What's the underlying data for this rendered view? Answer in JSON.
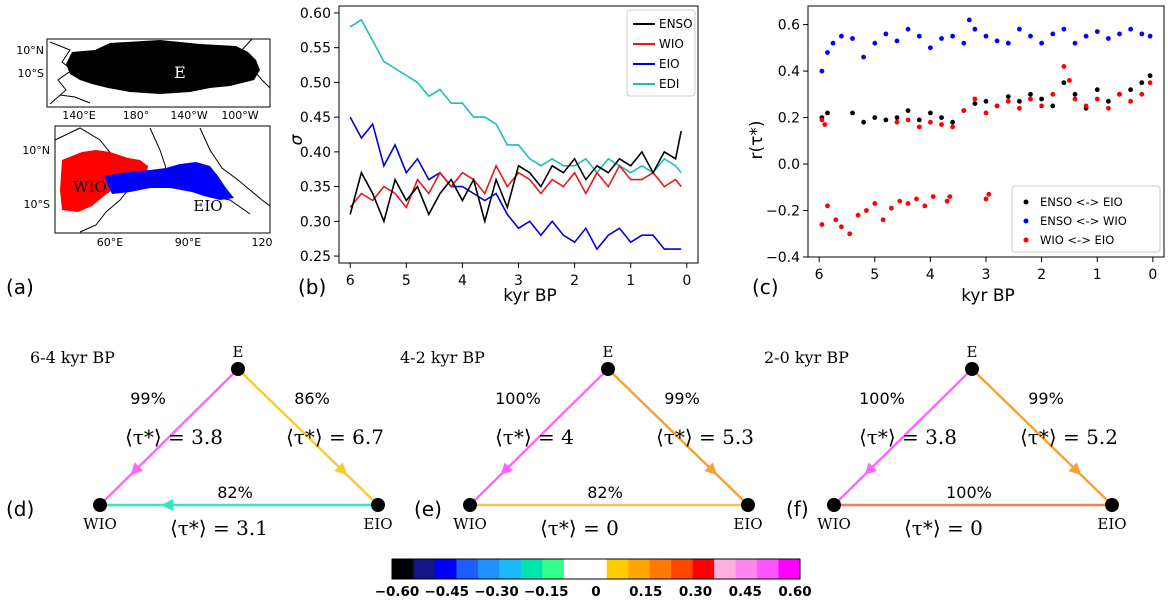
{
  "panel_labels": [
    "(a)",
    "(b)",
    "(c)",
    "(d)",
    "(e)",
    "(f)"
  ],
  "map_top": {
    "region_label": "E",
    "lat_ticks": [
      "10°N",
      "10°S"
    ],
    "lon_ticks": [
      "140°E",
      "180°",
      "140°W",
      "100°W"
    ],
    "region_color": "#000000"
  },
  "map_bottom": {
    "region_labels": [
      "WIO",
      "EIO"
    ],
    "lat_ticks": [
      "10°N",
      "10°S"
    ],
    "lon_ticks": [
      "60°E",
      "90°E",
      "120"
    ],
    "region_colors": {
      "WIO": "#ff0000",
      "EIO": "#0000ff"
    }
  },
  "chart_data": [
    {
      "type": "line",
      "panel": "(b)",
      "xlabel": "kyr BP",
      "ylabel": "σ",
      "xlim": [
        6.2,
        -0.2
      ],
      "ylim": [
        0.24,
        0.61
      ],
      "xticks": [
        6,
        5,
        4,
        3,
        2,
        1,
        0
      ],
      "yticks": [
        0.25,
        0.3,
        0.35,
        0.4,
        0.45,
        0.5,
        0.55,
        0.6
      ],
      "ytick_labels": [
        "0.25",
        "0.30",
        "0.35",
        "0.40",
        "0.45",
        "0.50",
        "0.55",
        "0.60"
      ],
      "legend": "top-right",
      "x": [
        6.0,
        5.8,
        5.6,
        5.4,
        5.2,
        5.0,
        4.8,
        4.6,
        4.4,
        4.2,
        4.0,
        3.8,
        3.6,
        3.4,
        3.2,
        3.0,
        2.8,
        2.6,
        2.4,
        2.2,
        2.0,
        1.8,
        1.6,
        1.4,
        1.2,
        1.0,
        0.8,
        0.6,
        0.4,
        0.2,
        0.1
      ],
      "series": [
        {
          "name": "ENSO",
          "color": "#000000",
          "values": [
            0.31,
            0.37,
            0.34,
            0.3,
            0.36,
            0.33,
            0.35,
            0.31,
            0.34,
            0.36,
            0.33,
            0.36,
            0.3,
            0.36,
            0.32,
            0.38,
            0.37,
            0.35,
            0.38,
            0.37,
            0.39,
            0.36,
            0.38,
            0.37,
            0.39,
            0.38,
            0.4,
            0.37,
            0.4,
            0.39,
            0.43
          ]
        },
        {
          "name": "WIO",
          "color": "#e41a1c",
          "values": [
            0.32,
            0.34,
            0.33,
            0.35,
            0.34,
            0.32,
            0.36,
            0.34,
            0.37,
            0.35,
            0.37,
            0.36,
            0.34,
            0.38,
            0.35,
            0.37,
            0.36,
            0.34,
            0.36,
            0.35,
            0.37,
            0.34,
            0.37,
            0.35,
            0.38,
            0.36,
            0.36,
            0.37,
            0.35,
            0.36,
            0.35
          ]
        },
        {
          "name": "EIO",
          "color": "#0000e0",
          "values": [
            0.45,
            0.42,
            0.44,
            0.38,
            0.41,
            0.37,
            0.39,
            0.36,
            0.37,
            0.35,
            0.35,
            0.34,
            0.33,
            0.34,
            0.31,
            0.29,
            0.3,
            0.28,
            0.3,
            0.28,
            0.27,
            0.29,
            0.26,
            0.28,
            0.29,
            0.27,
            0.28,
            0.28,
            0.26,
            0.26,
            0.26
          ]
        },
        {
          "name": "EDI",
          "color": "#1fbcbc",
          "values": [
            0.58,
            0.59,
            0.56,
            0.53,
            0.52,
            0.51,
            0.5,
            0.48,
            0.49,
            0.47,
            0.47,
            0.45,
            0.45,
            0.44,
            0.41,
            0.41,
            0.39,
            0.38,
            0.39,
            0.38,
            0.38,
            0.39,
            0.37,
            0.39,
            0.38,
            0.37,
            0.38,
            0.37,
            0.39,
            0.38,
            0.37
          ]
        }
      ]
    },
    {
      "type": "scatter",
      "panel": "(c)",
      "xlabel": "kyr BP",
      "ylabel": "r(τ*)",
      "xlim": [
        6.2,
        -0.2
      ],
      "ylim": [
        -0.4,
        0.68
      ],
      "xticks": [
        6,
        5,
        4,
        3,
        2,
        1,
        0
      ],
      "yticks": [
        -0.4,
        -0.2,
        0.0,
        0.2,
        0.4,
        0.6
      ],
      "ytick_labels": [
        "−0.4",
        "−0.2",
        "0.0",
        "0.2",
        "0.4",
        "0.6"
      ],
      "legend": "bottom-right",
      "series": [
        {
          "name": "ENSO <-> EIO",
          "color": "#000000",
          "points": [
            [
              5.95,
              0.2
            ],
            [
              5.85,
              0.22
            ],
            [
              5.4,
              0.22
            ],
            [
              5.2,
              0.18
            ],
            [
              5.0,
              0.2
            ],
            [
              4.8,
              0.19
            ],
            [
              4.6,
              0.2
            ],
            [
              4.4,
              0.23
            ],
            [
              4.2,
              0.19
            ],
            [
              4.0,
              0.22
            ],
            [
              3.8,
              0.2
            ],
            [
              3.6,
              0.18
            ],
            [
              3.4,
              0.23
            ],
            [
              3.2,
              0.26
            ],
            [
              3.0,
              0.27
            ],
            [
              2.8,
              0.25
            ],
            [
              2.6,
              0.29
            ],
            [
              2.4,
              0.27
            ],
            [
              2.2,
              0.3
            ],
            [
              2.0,
              0.28
            ],
            [
              1.8,
              0.25
            ],
            [
              1.6,
              0.35
            ],
            [
              1.4,
              0.3
            ],
            [
              1.2,
              0.24
            ],
            [
              1.0,
              0.32
            ],
            [
              0.8,
              0.27
            ],
            [
              0.6,
              0.3
            ],
            [
              0.4,
              0.32
            ],
            [
              0.2,
              0.35
            ],
            [
              0.05,
              0.38
            ]
          ]
        },
        {
          "name": "ENSO <-> WIO",
          "color": "#0000ff",
          "points": [
            [
              5.95,
              0.4
            ],
            [
              5.85,
              0.48
            ],
            [
              5.75,
              0.52
            ],
            [
              5.6,
              0.55
            ],
            [
              5.4,
              0.54
            ],
            [
              5.2,
              0.46
            ],
            [
              5.0,
              0.52
            ],
            [
              4.8,
              0.56
            ],
            [
              4.6,
              0.53
            ],
            [
              4.4,
              0.58
            ],
            [
              4.2,
              0.55
            ],
            [
              4.0,
              0.5
            ],
            [
              3.8,
              0.54
            ],
            [
              3.6,
              0.55
            ],
            [
              3.4,
              0.52
            ],
            [
              3.3,
              0.62
            ],
            [
              3.2,
              0.58
            ],
            [
              3.0,
              0.55
            ],
            [
              2.8,
              0.53
            ],
            [
              2.6,
              0.52
            ],
            [
              2.4,
              0.58
            ],
            [
              2.2,
              0.55
            ],
            [
              2.0,
              0.52
            ],
            [
              1.8,
              0.56
            ],
            [
              1.6,
              0.58
            ],
            [
              1.4,
              0.52
            ],
            [
              1.2,
              0.55
            ],
            [
              1.0,
              0.57
            ],
            [
              0.8,
              0.54
            ],
            [
              0.6,
              0.56
            ],
            [
              0.4,
              0.58
            ],
            [
              0.2,
              0.56
            ],
            [
              0.05,
              0.55
            ]
          ]
        },
        {
          "name": "WIO <-> EIO",
          "color": "#ff0000",
          "points": [
            [
              5.95,
              -0.26
            ],
            [
              5.85,
              -0.18
            ],
            [
              5.7,
              -0.24
            ],
            [
              5.6,
              -0.27
            ],
            [
              5.45,
              -0.3
            ],
            [
              5.3,
              -0.22
            ],
            [
              5.15,
              -0.2
            ],
            [
              5.0,
              -0.17
            ],
            [
              4.85,
              -0.24
            ],
            [
              4.7,
              -0.19
            ],
            [
              4.55,
              -0.16
            ],
            [
              4.4,
              -0.17
            ],
            [
              4.25,
              -0.15
            ],
            [
              4.1,
              -0.18
            ],
            [
              3.95,
              -0.14
            ],
            [
              3.7,
              -0.16
            ],
            [
              3.65,
              -0.14
            ],
            [
              3.0,
              -0.15
            ],
            [
              2.95,
              -0.13
            ],
            [
              5.95,
              0.19
            ],
            [
              5.9,
              0.17
            ],
            [
              4.6,
              0.18
            ],
            [
              4.4,
              0.19
            ],
            [
              4.2,
              0.16
            ],
            [
              4.0,
              0.18
            ],
            [
              3.8,
              0.17
            ],
            [
              3.6,
              0.16
            ],
            [
              3.4,
              0.23
            ],
            [
              3.2,
              0.28
            ],
            [
              3.0,
              0.22
            ],
            [
              2.8,
              0.25
            ],
            [
              2.6,
              0.27
            ],
            [
              2.4,
              0.24
            ],
            [
              2.2,
              0.28
            ],
            [
              2.0,
              0.25
            ],
            [
              1.8,
              0.3
            ],
            [
              1.6,
              0.42
            ],
            [
              1.5,
              0.36
            ],
            [
              1.4,
              0.28
            ],
            [
              1.2,
              0.25
            ],
            [
              1.0,
              0.28
            ],
            [
              0.8,
              0.24
            ],
            [
              0.6,
              0.3
            ],
            [
              0.4,
              0.27
            ],
            [
              0.2,
              0.3
            ],
            [
              0.05,
              0.35
            ]
          ]
        }
      ]
    }
  ],
  "networks": [
    {
      "title": "6-4 kyr BP",
      "nodes": {
        "E": "E",
        "WIO": "WIO",
        "EIO": "EIO"
      },
      "edges": [
        {
          "id": "E-WIO",
          "percent": "99%",
          "tau": "⟨τ*⟩ = 3.8",
          "value": 0.5,
          "color": "#ff66ff",
          "arrow": "to-WIO"
        },
        {
          "id": "E-EIO",
          "percent": "86%",
          "tau": "⟨τ*⟩ = 6.7",
          "value": 0.16,
          "color": "#f8cc2c",
          "arrow": "to-EIO"
        },
        {
          "id": "EIO-WIO",
          "percent": "82%",
          "tau": "⟨τ*⟩ = 3.1",
          "value": -0.16,
          "color": "#2fe8c0",
          "arrow": "to-WIO"
        }
      ]
    },
    {
      "title": "4-2 kyr BP",
      "nodes": {
        "E": "E",
        "WIO": "WIO",
        "EIO": "EIO"
      },
      "edges": [
        {
          "id": "E-WIO",
          "percent": "100%",
          "tau": "⟨τ*⟩ = 4",
          "value": 0.55,
          "color": "#ff66ff",
          "arrow": "to-WIO"
        },
        {
          "id": "E-EIO",
          "percent": "99%",
          "tau": "⟨τ*⟩ = 5.3",
          "value": 0.25,
          "color": "#f8a030",
          "arrow": "to-EIO"
        },
        {
          "id": "EIO-WIO",
          "percent": "82%",
          "tau": "⟨τ*⟩ = 0",
          "value": 0.18,
          "color": "#f8c050",
          "arrow": "none"
        }
      ]
    },
    {
      "title": "2-0 kyr BP",
      "nodes": {
        "E": "E",
        "WIO": "WIO",
        "EIO": "EIO"
      },
      "edges": [
        {
          "id": "E-WIO",
          "percent": "100%",
          "tau": "⟨τ*⟩ = 3.8",
          "value": 0.55,
          "color": "#ff66ff",
          "arrow": "to-WIO"
        },
        {
          "id": "E-EIO",
          "percent": "99%",
          "tau": "⟨τ*⟩ = 5.2",
          "value": 0.25,
          "color": "#f8a030",
          "arrow": "to-EIO"
        },
        {
          "id": "EIO-WIO",
          "percent": "100%",
          "tau": "⟨τ*⟩ = 0",
          "value": 0.28,
          "color": "#f08050",
          "arrow": "none"
        }
      ]
    }
  ],
  "colorbar": {
    "tick_labels": [
      "−0.60",
      "−0.45",
      "−0.30",
      "−0.15",
      "0",
      "0.15",
      "0.30",
      "0.45",
      "0.60"
    ],
    "colors": [
      "#000000",
      "#14148a",
      "#0000ff",
      "#1d5bff",
      "#1e90ff",
      "#1eb8ff",
      "#00e6b0",
      "#33ff88",
      "#ffffff",
      "#ffffff",
      "#ffcc00",
      "#ffa500",
      "#ff7a00",
      "#ff4500",
      "#ff0000",
      "#ffb0e0",
      "#ff88ee",
      "#ff55ff",
      "#ff00ff"
    ]
  }
}
